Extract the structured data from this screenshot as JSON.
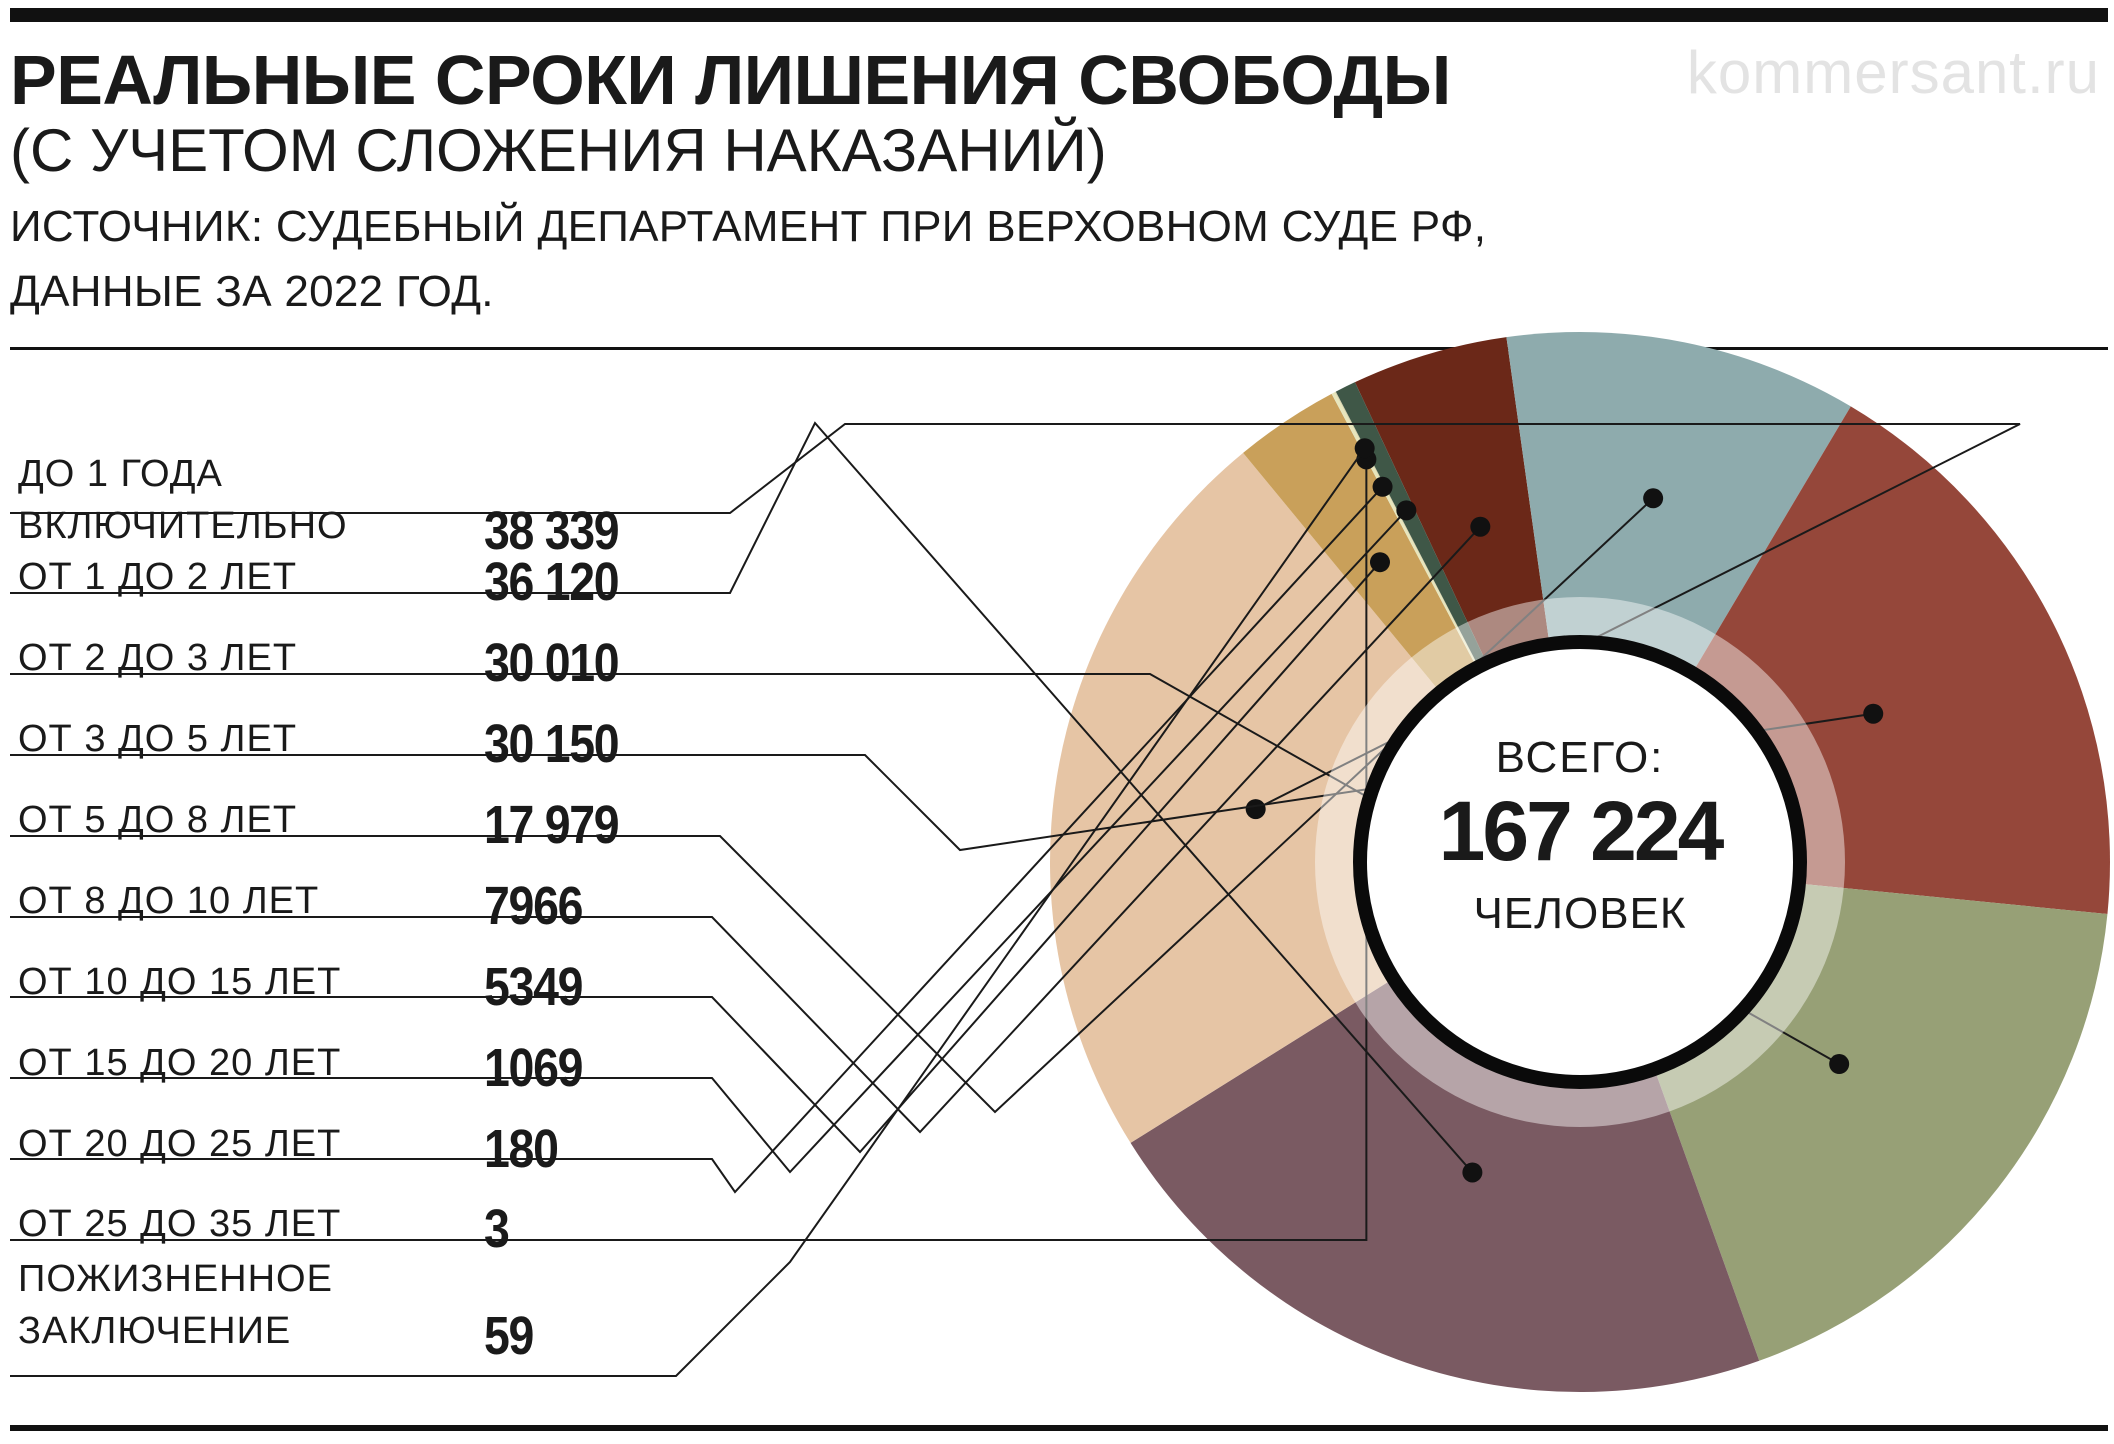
{
  "header": {
    "title": "РЕАЛЬНЫЕ СРОКИ ЛИШЕНИЯ СВОБОДЫ",
    "subtitle": "(С УЧЕТОМ СЛОЖЕНИЯ НАКАЗАНИЙ)",
    "source_line1": "ИСТОЧНИК: СУДЕБНЫЙ ДЕПАРТАМЕНТ ПРИ ВЕРХОВНОМ СУДЕ РФ,",
    "source_line2": "ДАННЫЕ ЗА 2022 ГОД.",
    "watermark": "kommersant.ru"
  },
  "center": {
    "label_top": "ВСЕГО:",
    "total": "167 224",
    "label_bottom": "ЧЕЛОВЕК"
  },
  "rows": [
    {
      "label_lines": [
        "ДО 1 ГОДА",
        "ВКЛЮЧИТЕЛЬНО"
      ],
      "value": "38 339"
    },
    {
      "label_lines": [
        "ОТ 1 ДО 2 ЛЕТ"
      ],
      "value": "36 120"
    },
    {
      "label_lines": [
        "ОТ 2 ДО 3 ЛЕТ"
      ],
      "value": "30 010"
    },
    {
      "label_lines": [
        "ОТ 3 ДО 5 ЛЕТ"
      ],
      "value": "30 150"
    },
    {
      "label_lines": [
        "ОТ 5 ДО 8 ЛЕТ"
      ],
      "value": "17 979"
    },
    {
      "label_lines": [
        "ОТ 8 ДО 10 ЛЕТ"
      ],
      "value": "7966"
    },
    {
      "label_lines": [
        "ОТ 10 ДО 15 ЛЕТ"
      ],
      "value": "5349"
    },
    {
      "label_lines": [
        "ОТ 15 ДО 20 ЛЕТ"
      ],
      "value": "1069"
    },
    {
      "label_lines": [
        "ОТ 20 ДО 25 ЛЕТ"
      ],
      "value": "180"
    },
    {
      "label_lines": [
        "ОТ 25 ДО 35 ЛЕТ"
      ],
      "value": "3"
    },
    {
      "label_lines": [
        "ПОЖИЗНЕННОЕ",
        "ЗАКЛЮЧЕНИЕ"
      ],
      "value": "59"
    }
  ],
  "chart_data": {
    "type": "pie",
    "title": "РЕАЛЬНЫЕ СРОКИ ЛИШЕНИЯ СВОБОДЫ",
    "total": 167224,
    "categories": [
      "ДО 1 ГОДА ВКЛЮЧИТЕЛЬНО",
      "ОТ 1 ДО 2 ЛЕТ",
      "ОТ 2 ДО 3 ЛЕТ",
      "ОТ 3 ДО 5 ЛЕТ",
      "ОТ 5 ДО 8 ЛЕТ",
      "ОТ 8 ДО 10 ЛЕТ",
      "ОТ 10 ДО 15 ЛЕТ",
      "ОТ 15 ДО 20 ЛЕТ",
      "ОТ 20 ДО 25 ЛЕТ",
      "ОТ 25 ДО 35 ЛЕТ",
      "ПОЖИЗНЕННОЕ ЗАКЛЮЧЕНИЕ"
    ],
    "values": [
      38339,
      36120,
      30010,
      30150,
      17979,
      7966,
      5349,
      1069,
      180,
      3,
      59
    ],
    "colors": [
      "#e6c5a5",
      "#7a5a62",
      "#97a076",
      "#95473a",
      "#8eabad",
      "#6b2818",
      "#c9a05a",
      "#3f5747",
      "#e8e6bc",
      "#a3a3a3",
      "#d8d4ad"
    ],
    "ring_order": [
      5,
      4,
      3,
      2,
      1,
      0,
      6,
      9,
      8,
      10,
      7
    ]
  }
}
